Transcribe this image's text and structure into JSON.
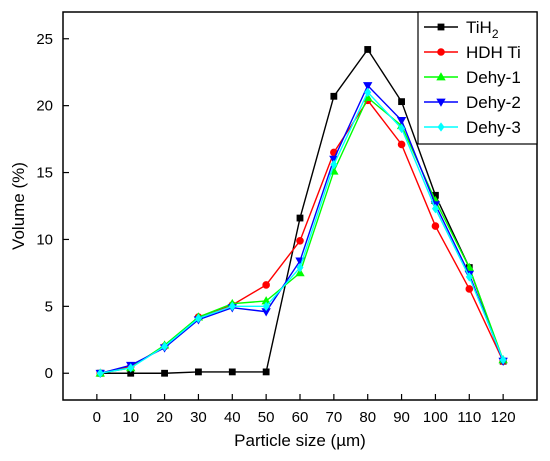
{
  "chart_data": {
    "type": "line",
    "xlabel": "Particle size (µm)",
    "ylabel": "Volume (%)",
    "xlim": [
      -10,
      130
    ],
    "ylim": [
      -2,
      27
    ],
    "xticks": [
      0,
      10,
      20,
      30,
      40,
      50,
      60,
      70,
      80,
      90,
      100,
      110,
      120
    ],
    "yticks": [
      0,
      5,
      10,
      15,
      20,
      25
    ],
    "grid": false,
    "legend_position": "top-right",
    "series": [
      {
        "name": "TiH",
        "name_subscript": "2",
        "color": "#000000",
        "marker": "square",
        "x": [
          1,
          10,
          20,
          30,
          40,
          50,
          60,
          70,
          80,
          90,
          100,
          110,
          120
        ],
        "y": [
          0,
          0,
          0,
          0.1,
          0.1,
          0.1,
          11.6,
          20.7,
          24.2,
          20.3,
          13.3,
          7.9,
          0.9
        ]
      },
      {
        "name": "HDH Ti",
        "color": "#ff0000",
        "marker": "circle",
        "x": [
          1,
          10,
          20,
          30,
          40,
          50,
          60,
          70,
          80,
          90,
          100,
          110,
          120
        ],
        "y": [
          0,
          0.5,
          2.0,
          4.2,
          5.1,
          6.6,
          9.9,
          16.5,
          20.4,
          17.1,
          11.0,
          6.3,
          0.9
        ]
      },
      {
        "name": "Dehy-1",
        "color": "#00ff00",
        "marker": "triangle-up",
        "x": [
          1,
          10,
          20,
          30,
          40,
          50,
          60,
          70,
          80,
          90,
          100,
          110,
          120
        ],
        "y": [
          0,
          0.4,
          2.1,
          4.2,
          5.2,
          5.4,
          7.5,
          15.1,
          20.6,
          18.5,
          12.9,
          7.9,
          1.0
        ]
      },
      {
        "name": "Dehy-2",
        "color": "#0000ff",
        "marker": "triangle-down",
        "x": [
          1,
          10,
          20,
          30,
          40,
          50,
          60,
          70,
          80,
          90,
          100,
          110,
          120
        ],
        "y": [
          0,
          0.6,
          1.9,
          4.0,
          4.9,
          4.6,
          8.4,
          16.0,
          21.5,
          18.9,
          12.6,
          7.4,
          0.9
        ]
      },
      {
        "name": "Dehy-3",
        "color": "#00ffff",
        "marker": "diamond",
        "x": [
          1,
          10,
          20,
          30,
          40,
          50,
          60,
          70,
          80,
          90,
          100,
          110,
          120
        ],
        "y": [
          0,
          0.4,
          2.0,
          4.1,
          5.0,
          5.0,
          7.9,
          15.6,
          21.0,
          18.3,
          12.3,
          7.2,
          1.0
        ]
      }
    ]
  }
}
